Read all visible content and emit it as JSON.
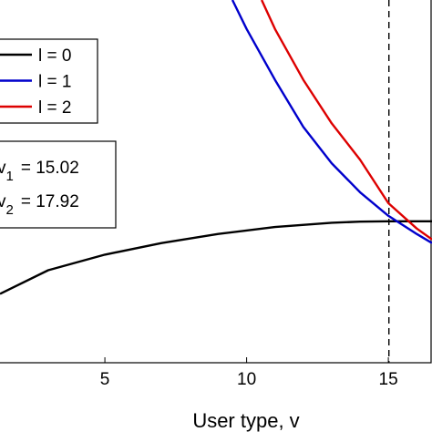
{
  "chart_data": {
    "type": "line",
    "xlabel": "User type, v",
    "xlim": [
      1.3,
      16.54
    ],
    "ylim": [
      0,
      1
    ],
    "xticks": [
      5,
      10,
      15
    ],
    "series": [
      {
        "name": "l = 0",
        "color": "#000000",
        "x": [
          1.3,
          3,
          5,
          7,
          9,
          11,
          13,
          14,
          15,
          16.54
        ],
        "values": [
          0.19,
          0.255,
          0.298,
          0.33,
          0.355,
          0.374,
          0.386,
          0.389,
          0.39,
          0.39
        ]
      },
      {
        "name": "l = 1",
        "color": "#0000cc",
        "x": [
          9.5,
          10,
          11,
          12,
          13,
          14,
          15,
          16,
          16.54
        ],
        "values": [
          1.0,
          0.92,
          0.78,
          0.65,
          0.55,
          0.47,
          0.405,
          0.355,
          0.33
        ]
      },
      {
        "name": "l = 2",
        "color": "#dd0000",
        "x": [
          10.53,
          11,
          12,
          13,
          14,
          15,
          16,
          16.54
        ],
        "values": [
          1.0,
          0.92,
          0.78,
          0.66,
          0.56,
          0.44,
          0.37,
          0.34
        ]
      }
    ],
    "vline": 15.02,
    "annotations": [
      {
        "symbol": "v",
        "sub": "1",
        "text": "= 15.02"
      },
      {
        "symbol": "v",
        "sub": "2",
        "text": "= 17.92"
      }
    ]
  }
}
